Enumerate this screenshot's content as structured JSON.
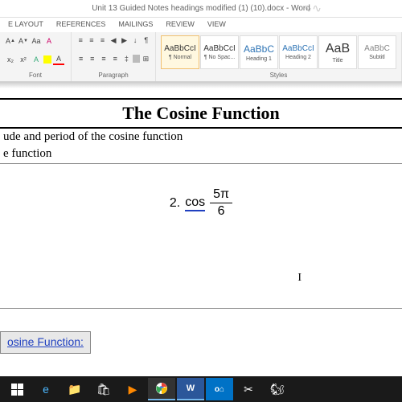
{
  "titlebar": {
    "filename": "Unit 13 Guided Notes headings modified (1) (10).docx - Word"
  },
  "tabs": {
    "layout": "E LAYOUT",
    "references": "REFERENCES",
    "mailings": "MAILINGS",
    "review": "REVIEW",
    "view": "VIEW"
  },
  "ribbon": {
    "font_label": "Font",
    "paragraph_label": "Paragraph",
    "styles_label": "Styles",
    "styles": [
      {
        "preview": "AaBbCcI",
        "name": "¶ Normal",
        "size": "10px",
        "color": "#333"
      },
      {
        "preview": "AaBbCcI",
        "name": "¶ No Spac...",
        "size": "10px",
        "color": "#333"
      },
      {
        "preview": "AaBbC",
        "name": "Heading 1",
        "size": "12px",
        "color": "#2e74b5"
      },
      {
        "preview": "AaBbCcI",
        "name": "Heading 2",
        "size": "10px",
        "color": "#2e74b5"
      },
      {
        "preview": "AaB",
        "name": "Title",
        "size": "16px",
        "color": "#333"
      },
      {
        "preview": "AaBbC",
        "name": "Subtitl",
        "size": "10px",
        "color": "#888"
      }
    ]
  },
  "doc": {
    "title": "The Cosine Function",
    "line1": "ude and period of the cosine function",
    "line2": "e function",
    "problem_num": "2.",
    "cos_label": "cos",
    "frac_num": "5π",
    "frac_den": "6",
    "link_label": "osine Function:"
  },
  "colors": {
    "ribbon_bg": "#f4f4f4",
    "accent": "#2b579a",
    "link": "#2040c0",
    "taskbar": "#1a1a1a"
  }
}
